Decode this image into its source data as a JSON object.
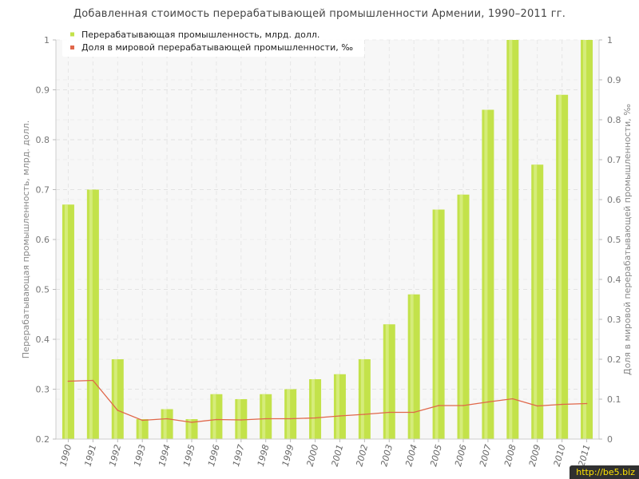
{
  "chart_data": {
    "type": "bar",
    "title": "Добавленная стоимость перерабатывающей промышленности Армении, 1990–2011 гг.",
    "categories": [
      "1990",
      "1991",
      "1992",
      "1993",
      "1994",
      "1995",
      "1996",
      "1997",
      "1998",
      "1999",
      "2000",
      "2001",
      "2002",
      "2003",
      "2004",
      "2005",
      "2006",
      "2007",
      "2008",
      "2009",
      "2010",
      "2011"
    ],
    "series": [
      {
        "name": "Перерабатывающая промышленность, млрд. долл.",
        "type": "bar",
        "axis": "left",
        "color": "#c3e24a",
        "values": [
          0.67,
          0.7,
          0.36,
          0.24,
          0.26,
          0.24,
          0.29,
          0.28,
          0.29,
          0.3,
          0.32,
          0.33,
          0.36,
          0.43,
          0.49,
          0.66,
          0.69,
          0.86,
          1.0,
          0.75,
          0.89,
          1.0
        ]
      },
      {
        "name": "Доля в мировой перерабатывающей промышленности, ‰",
        "type": "line",
        "axis": "right",
        "color": "#e0674a",
        "values": [
          0.145,
          0.147,
          0.072,
          0.047,
          0.051,
          0.042,
          0.049,
          0.048,
          0.051,
          0.051,
          0.053,
          0.058,
          0.062,
          0.067,
          0.067,
          0.084,
          0.084,
          0.093,
          0.101,
          0.083,
          0.087,
          0.089
        ]
      }
    ],
    "ylabel": "Перерабатывающая промышленность, млрд. долл.",
    "y2label": "Доля в мировой перерабатывающей промышленности, ‰",
    "xlabel": "",
    "ylim": [
      0.2,
      1.0
    ],
    "y2lim": [
      0,
      1.0
    ],
    "yticks": [
      "0.2",
      "0.3",
      "0.4",
      "0.5",
      "0.6",
      "0.7",
      "0.8",
      "0.9",
      "1"
    ],
    "y2ticks": [
      "0",
      "0.1",
      "0.2",
      "0.3",
      "0.4",
      "0.5",
      "0.6",
      "0.7",
      "0.8",
      "0.9",
      "1"
    ],
    "grid": true,
    "legend": "top-left"
  },
  "watermark": "http://be5.biz"
}
